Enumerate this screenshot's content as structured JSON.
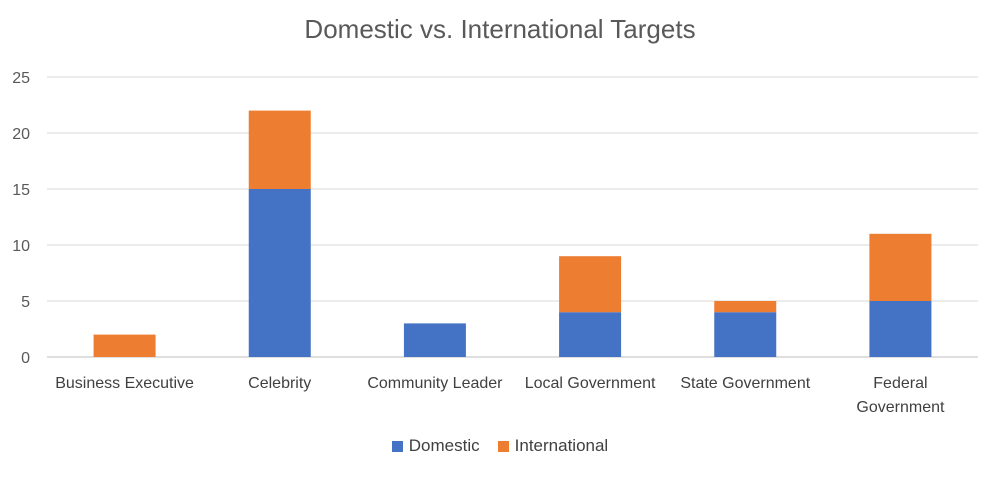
{
  "chart_data": {
    "type": "bar",
    "stacked": true,
    "title": "Domestic vs. International Targets",
    "xlabel": "",
    "ylabel": "",
    "categories": [
      "Business Executive",
      "Celebrity",
      "Community Leader",
      "Local Government",
      "State Government",
      "Federal Government"
    ],
    "category_lines": [
      [
        "Business Executive"
      ],
      [
        "Celebrity"
      ],
      [
        "Community Leader"
      ],
      [
        "Local Government"
      ],
      [
        "State Government"
      ],
      [
        "Federal",
        "Government"
      ]
    ],
    "series": [
      {
        "name": "Domestic",
        "values": [
          0,
          15,
          3,
          4,
          4,
          5
        ],
        "color": "#4472C4"
      },
      {
        "name": "International",
        "values": [
          2,
          7,
          0,
          5,
          1,
          6
        ],
        "color": "#ED7D31"
      }
    ],
    "ylim": [
      0,
      25
    ],
    "yticks": [
      0,
      5,
      10,
      15,
      20,
      25
    ],
    "grid": true,
    "legend_position": "bottom"
  }
}
